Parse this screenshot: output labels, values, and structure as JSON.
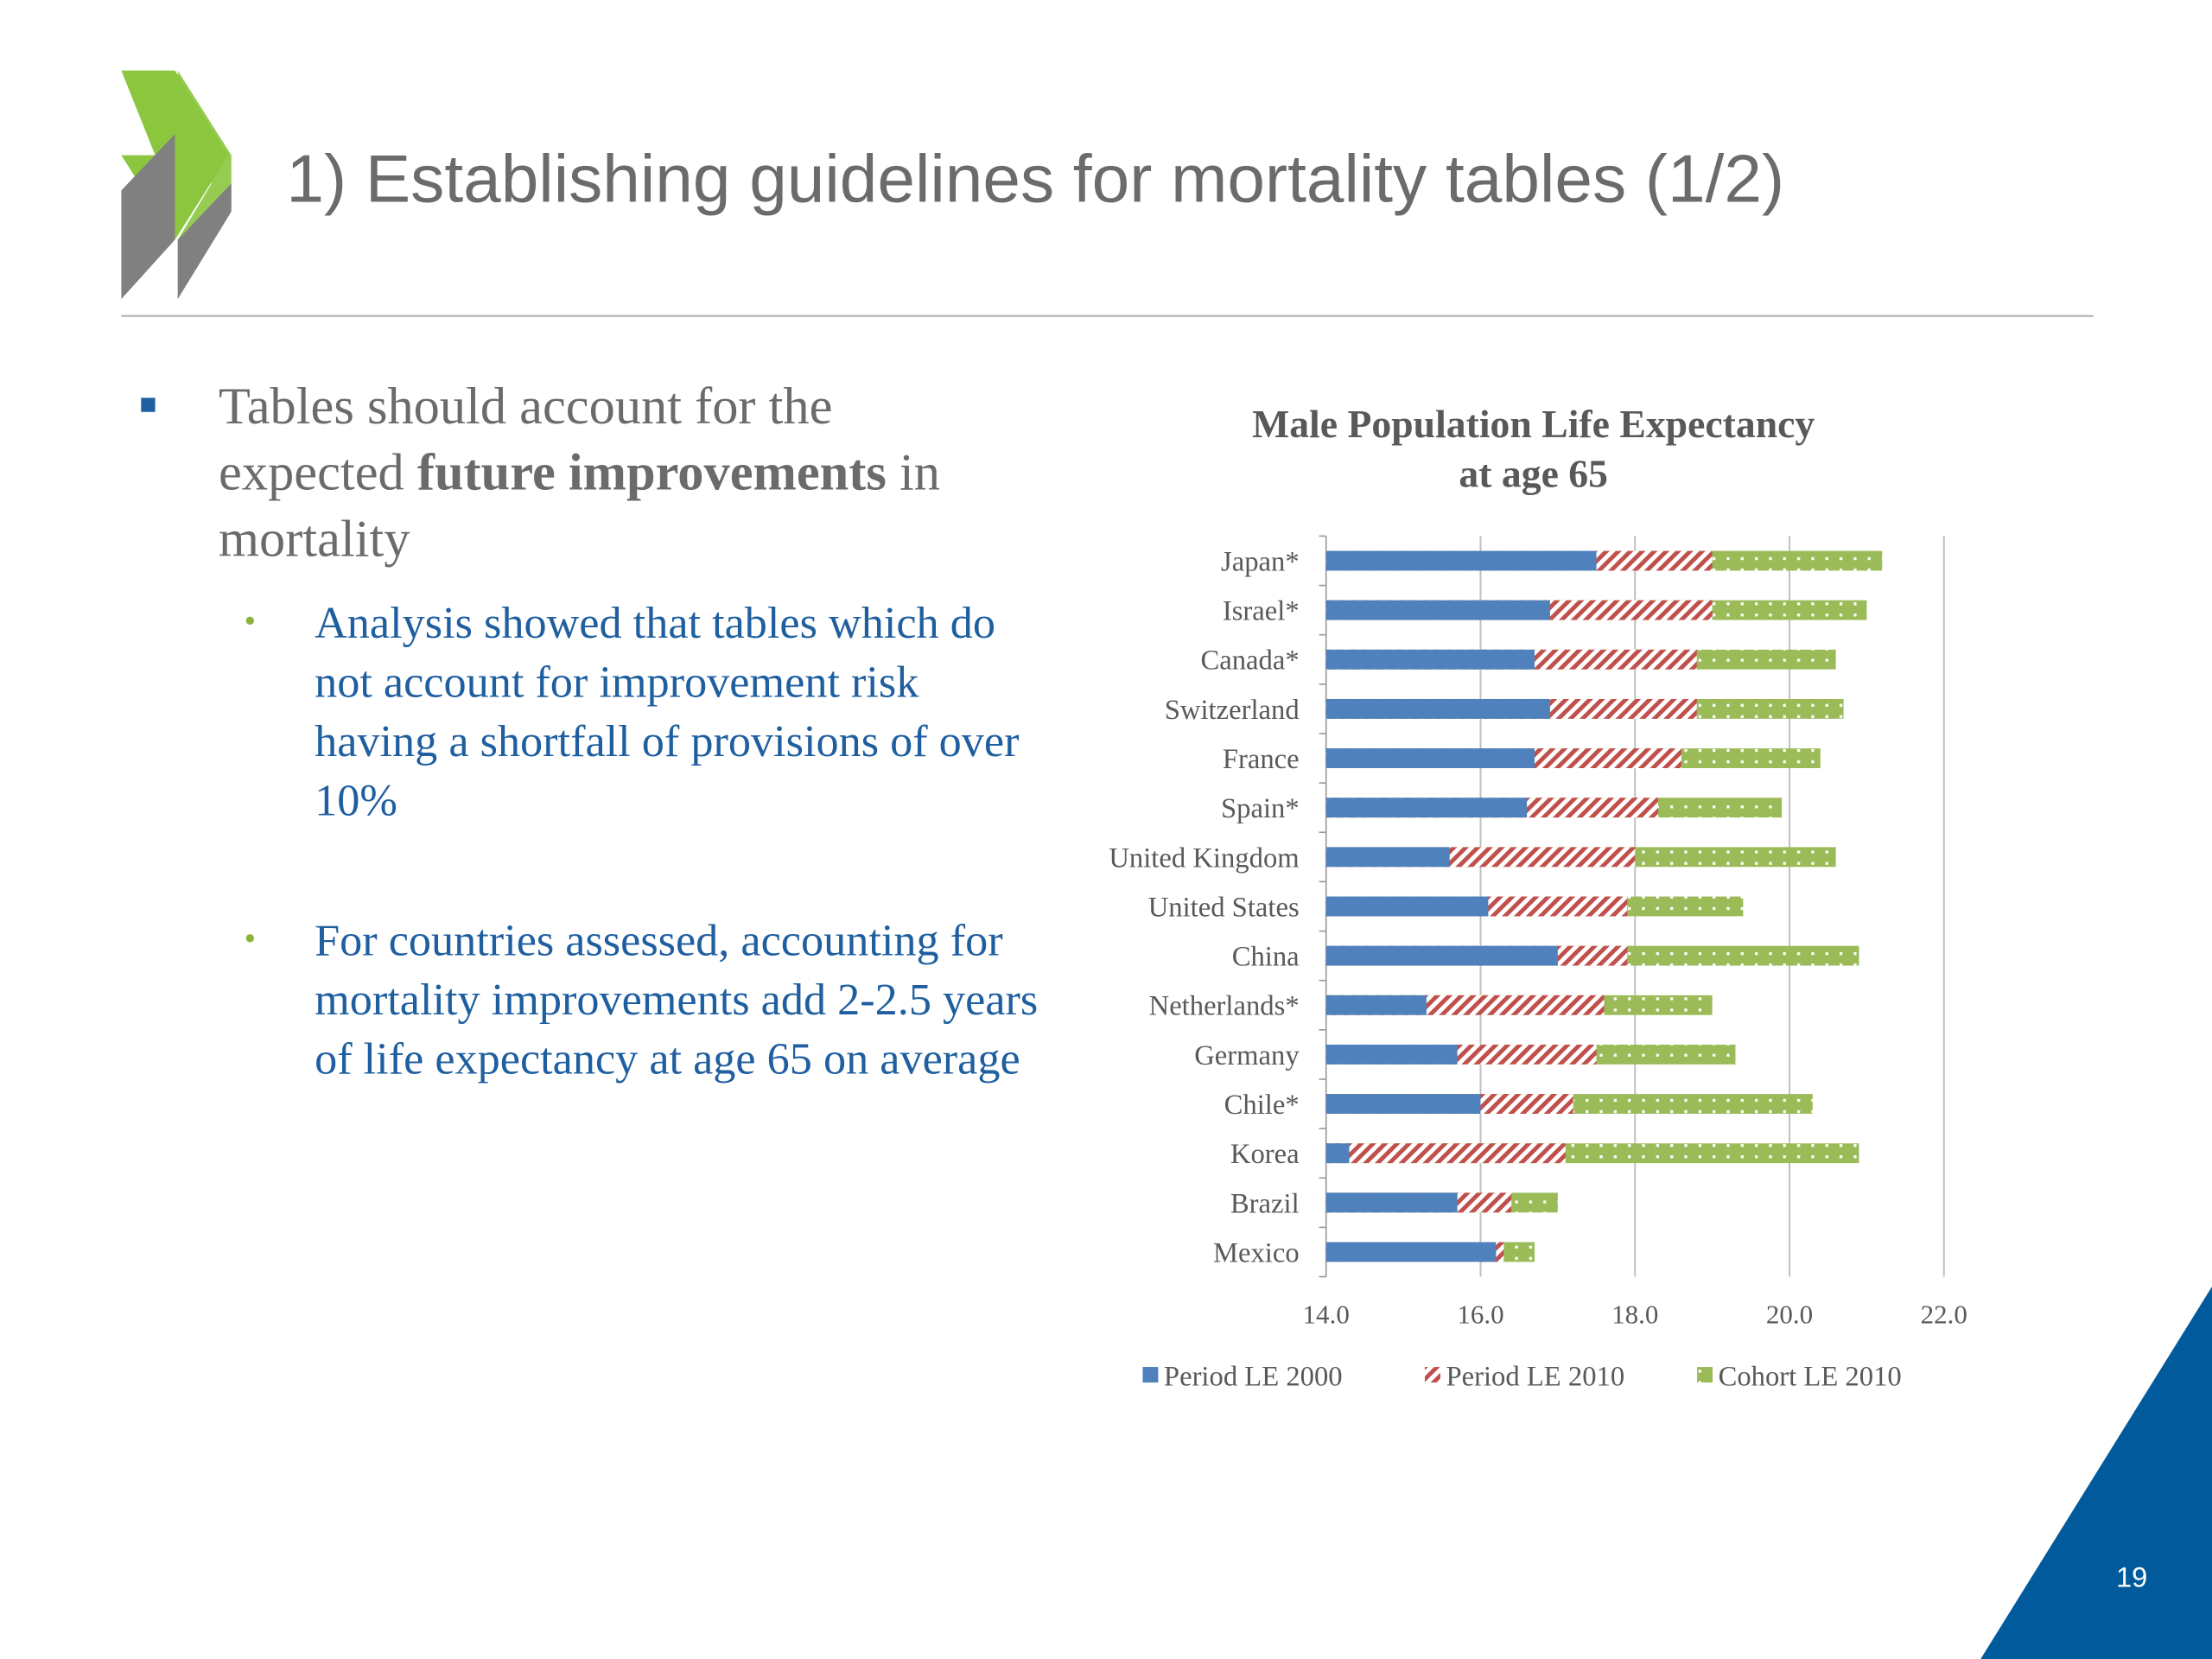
{
  "header": {
    "title": "1) Establishing guidelines for mortality tables (1/2)"
  },
  "body": {
    "bullet": {
      "parts": [
        {
          "text": "Tables should account for the expected ",
          "bold": false
        },
        {
          "text": "future improvements",
          "bold": true
        },
        {
          "text": " in mortality",
          "bold": false
        }
      ]
    },
    "subbullets": [
      "Analysis showed that tables which do not account for improvement risk having a shortfall of provisions of over 10%",
      "For countries assessed, accounting for mortality improvements add 2-2.5 years of life expectancy at age 65 on average"
    ]
  },
  "chart_data": {
    "type": "bar",
    "orientation": "horizontal",
    "title": "Male Population Life Expectancy at age 65",
    "categories": [
      "Japan*",
      "Israel*",
      "Canada*",
      "Switzerland",
      "France",
      "Spain*",
      "United Kingdom",
      "United States",
      "China",
      "Netherlands*",
      "Germany",
      "Chile*",
      "Korea",
      "Brazil",
      "Mexico"
    ],
    "series": [
      {
        "name": "Period LE 2000",
        "color": "#4f81bd",
        "pattern": "solid",
        "values": [
          17.5,
          16.9,
          16.7,
          16.9,
          16.7,
          16.6,
          15.6,
          16.1,
          17.0,
          15.3,
          15.7,
          16.0,
          14.3,
          15.7,
          16.2
        ]
      },
      {
        "name": "Period LE 2010",
        "color": "#c0504d",
        "pattern": "hatch",
        "values": [
          19.0,
          19.0,
          18.8,
          18.8,
          18.6,
          18.3,
          18.0,
          17.9,
          17.9,
          17.6,
          17.5,
          17.2,
          17.1,
          16.4,
          16.3
        ]
      },
      {
        "name": "Cohort LE 2010",
        "color": "#9bbb59",
        "pattern": "dots",
        "values": [
          21.2,
          21.0,
          20.6,
          20.7,
          20.4,
          19.9,
          20.6,
          19.4,
          20.9,
          19.0,
          19.3,
          20.3,
          20.9,
          17.0,
          16.7
        ]
      }
    ],
    "xlim": [
      14,
      22
    ],
    "xticks": [
      {
        "value": 14,
        "label": "14.0"
      },
      {
        "value": 16,
        "label": "16.0"
      },
      {
        "value": 18,
        "label": "18.0"
      },
      {
        "value": 20,
        "label": "20.0"
      },
      {
        "value": 22,
        "label": "22.0"
      }
    ],
    "grid": true,
    "legend": "bottom"
  },
  "footer": {
    "page": "19"
  }
}
